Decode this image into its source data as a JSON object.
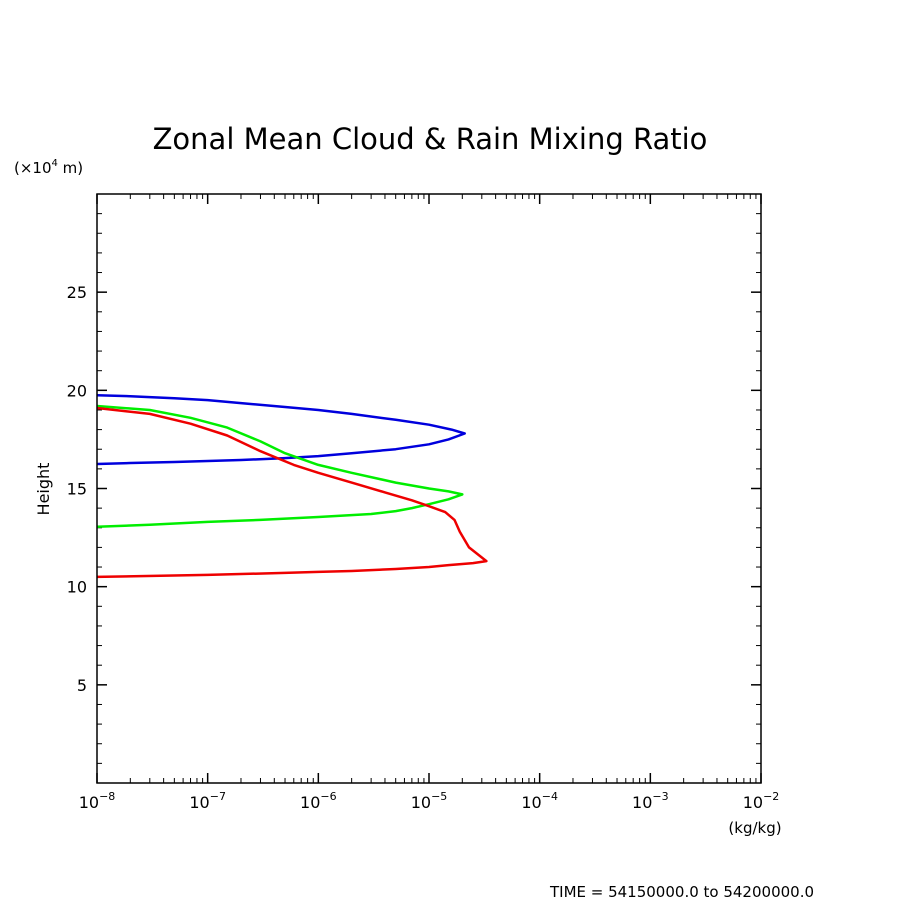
{
  "chart_data": {
    "type": "line",
    "title": "Zonal Mean Cloud & Rain Mixing Ratio",
    "ylabel": "Height",
    "y_unit_prefix": "(×10",
    "y_unit_exp": "4",
    "y_unit_suffix": " m)",
    "x_unit": "(kg/kg)",
    "footer": "TIME = 54150000.0 to 54200000.0",
    "x_scale": "log",
    "xlim": [
      1e-08,
      0.01
    ],
    "ylim": [
      0,
      30
    ],
    "yticks": [
      5,
      10,
      15,
      20,
      25
    ],
    "ytick_labels": [
      "5",
      "10",
      "15",
      "20",
      "25"
    ],
    "xticks": [
      1e-08,
      1e-07,
      1e-06,
      1e-05,
      0.0001,
      0.001,
      0.01
    ],
    "xtick_base": "10",
    "xtick_exps": [
      "−8",
      "−7",
      "−6",
      "−5",
      "−4",
      "−3",
      "−2"
    ],
    "grid": false,
    "legend": "none",
    "series": [
      {
        "color": "#0000dd",
        "x": [
          1e-08,
          2e-08,
          5e-08,
          1e-07,
          2e-07,
          5e-07,
          1e-06,
          2e-06,
          5e-06,
          1e-05,
          1.6e-05,
          2.1e-05,
          1.5e-05,
          1e-05,
          5e-06,
          2e-06,
          1e-06,
          5e-07,
          2e-07,
          1e-07,
          5e-08,
          2e-08,
          1e-08
        ],
        "y": [
          19.75,
          19.7,
          19.6,
          19.5,
          19.35,
          19.15,
          19.0,
          18.8,
          18.5,
          18.25,
          18.0,
          17.8,
          17.5,
          17.25,
          17.0,
          16.8,
          16.65,
          16.55,
          16.45,
          16.4,
          16.35,
          16.3,
          16.25
        ]
      },
      {
        "color": "#00ee00",
        "x": [
          1e-08,
          3e-08,
          7e-08,
          1.5e-07,
          3e-07,
          5e-07,
          1e-06,
          2e-06,
          5e-06,
          1e-05,
          1.5e-05,
          2e-05,
          1.5e-05,
          1e-05,
          7e-06,
          5e-06,
          3e-06,
          1e-06,
          3e-07,
          1e-07,
          3e-08,
          1e-08
        ],
        "y": [
          19.2,
          19.0,
          18.6,
          18.1,
          17.4,
          16.8,
          16.2,
          15.8,
          15.3,
          15.0,
          14.85,
          14.7,
          14.45,
          14.2,
          14.0,
          13.85,
          13.7,
          13.55,
          13.4,
          13.3,
          13.15,
          13.05
        ]
      },
      {
        "color": "#ee0000",
        "x": [
          1e-08,
          3e-08,
          7e-08,
          1.5e-07,
          3e-07,
          6e-07,
          1e-06,
          2e-06,
          4e-06,
          7e-06,
          1e-05,
          1.4e-05,
          1.7e-05,
          1.9e-05,
          2.3e-05,
          3.3e-05,
          2.5e-05,
          1.5e-05,
          1e-05,
          5e-06,
          2e-06,
          1e-06,
          5e-07,
          1e-07,
          1e-08
        ],
        "y": [
          19.1,
          18.8,
          18.3,
          17.7,
          16.9,
          16.2,
          15.8,
          15.3,
          14.8,
          14.4,
          14.1,
          13.8,
          13.4,
          12.8,
          12.0,
          11.3,
          11.2,
          11.1,
          11.0,
          10.9,
          10.8,
          10.75,
          10.7,
          10.6,
          10.5
        ]
      }
    ]
  }
}
